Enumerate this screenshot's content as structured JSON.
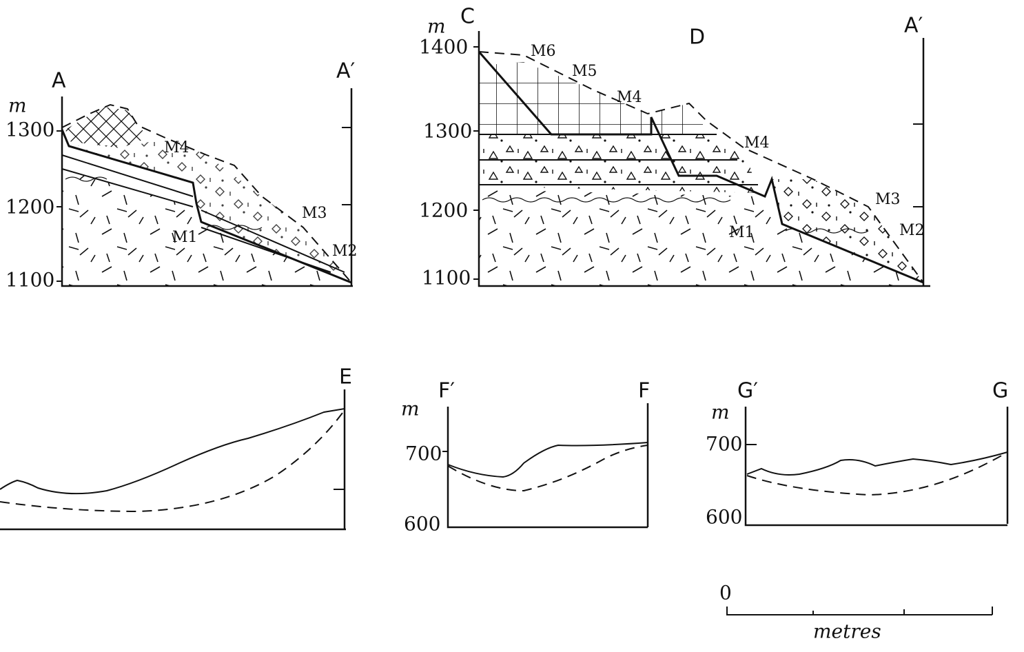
{
  "sections": [
    {
      "start": "A",
      "end": "A′",
      "unit": "m",
      "ticks": [
        1300,
        1200,
        1100
      ],
      "markers": [
        "M4",
        "M3",
        "M2",
        "M1"
      ]
    },
    {
      "start": "C",
      "middle": "D",
      "end": "A′",
      "unit": "m",
      "ticks": [
        1400,
        1300,
        1200,
        1100
      ],
      "markers": [
        "M6",
        "M5",
        "M4",
        "M4",
        "M3",
        "M2",
        "M1"
      ]
    },
    {
      "end": "E"
    },
    {
      "start": "F′",
      "end": "F",
      "unit": "m",
      "ticks": [
        700,
        600
      ]
    },
    {
      "start": "G′",
      "end": "G",
      "unit": "m",
      "ticks": [
        700,
        600
      ]
    }
  ],
  "scale": {
    "start": 0,
    "unit": "metres"
  }
}
